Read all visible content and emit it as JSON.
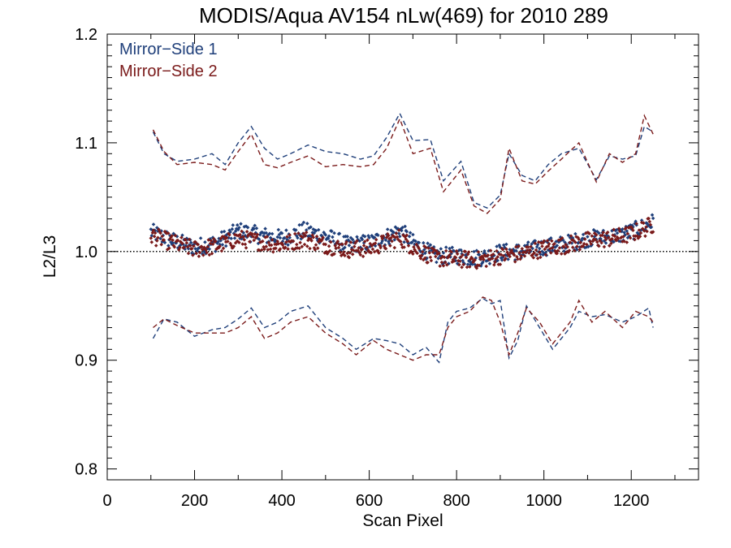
{
  "chart_data": {
    "type": "scatter",
    "title": "MODIS/Aqua AV154 nLw(469) for 2010 289",
    "xlabel": "Scan Pixel",
    "ylabel": "L2/L3",
    "xlim": [
      0,
      1354
    ],
    "ylim": [
      0.79,
      1.2
    ],
    "x_ticks": [
      0,
      200,
      400,
      600,
      800,
      1000,
      1200
    ],
    "x_tick_labels": [
      "0",
      "200",
      "400",
      "600",
      "800",
      "1000",
      "1200"
    ],
    "y_ticks": [
      0.8,
      0.9,
      1.0,
      1.1,
      1.2
    ],
    "y_tick_labels": [
      "0.8",
      "0.9",
      "1.0",
      "1.1",
      "1.2"
    ],
    "reference_line": {
      "y": 1.0,
      "style": "dotted",
      "color": "#000000"
    },
    "legend_position": "top-left",
    "series": [
      {
        "name": "Mirror−Side 1",
        "color": "#1f3f7a",
        "mean_profile": {
          "x": [
            100,
            150,
            200,
            250,
            300,
            350,
            400,
            450,
            500,
            550,
            600,
            650,
            670,
            700,
            750,
            800,
            850,
            900,
            950,
            1000,
            1050,
            1100,
            1150,
            1200,
            1250
          ],
          "y": [
            1.018,
            1.01,
            1.004,
            1.008,
            1.019,
            1.015,
            1.012,
            1.019,
            1.014,
            1.006,
            1.008,
            1.015,
            1.02,
            1.008,
            0.996,
            0.996,
            0.994,
            0.999,
            1.0,
            1.004,
            1.007,
            1.012,
            1.013,
            1.018,
            1.027
          ]
        },
        "upper_envelope": {
          "x": [
            105,
            130,
            160,
            200,
            240,
            270,
            300,
            330,
            360,
            390,
            420,
            460,
            500,
            540,
            580,
            610,
            640,
            670,
            700,
            740,
            770,
            810,
            840,
            870,
            900,
            920,
            950,
            980,
            1010,
            1040,
            1080,
            1120,
            1150,
            1180,
            1210,
            1230,
            1250
          ],
          "y": [
            1.11,
            1.09,
            1.083,
            1.085,
            1.09,
            1.08,
            1.1,
            1.115,
            1.095,
            1.085,
            1.09,
            1.098,
            1.092,
            1.09,
            1.085,
            1.088,
            1.105,
            1.127,
            1.102,
            1.103,
            1.065,
            1.083,
            1.045,
            1.04,
            1.052,
            1.09,
            1.07,
            1.065,
            1.08,
            1.09,
            1.095,
            1.066,
            1.088,
            1.085,
            1.088,
            1.115,
            1.11
          ]
        },
        "lower_envelope": {
          "x": [
            105,
            130,
            160,
            200,
            240,
            270,
            300,
            330,
            360,
            390,
            420,
            460,
            500,
            540,
            570,
            610,
            640,
            670,
            700,
            730,
            760,
            780,
            800,
            830,
            860,
            880,
            900,
            920,
            940,
            960,
            990,
            1020,
            1060,
            1080,
            1110,
            1140,
            1180,
            1210,
            1240,
            1250
          ],
          "y": [
            0.92,
            0.938,
            0.935,
            0.922,
            0.928,
            0.93,
            0.938,
            0.948,
            0.93,
            0.935,
            0.945,
            0.95,
            0.93,
            0.92,
            0.91,
            0.92,
            0.918,
            0.915,
            0.905,
            0.912,
            0.898,
            0.935,
            0.945,
            0.948,
            0.957,
            0.952,
            0.955,
            0.902,
            0.918,
            0.95,
            0.93,
            0.91,
            0.93,
            0.945,
            0.94,
            0.942,
            0.935,
            0.94,
            0.948,
            0.93
          ]
        }
      },
      {
        "name": "Mirror−Side 2",
        "color": "#7a1a1a",
        "mean_profile": {
          "x": [
            100,
            150,
            200,
            250,
            300,
            350,
            400,
            450,
            500,
            550,
            600,
            650,
            670,
            700,
            750,
            800,
            850,
            900,
            950,
            1000,
            1050,
            1100,
            1150,
            1200,
            1250
          ],
          "y": [
            1.015,
            1.008,
            1.002,
            1.005,
            1.012,
            1.009,
            1.006,
            1.012,
            1.006,
            1.002,
            1.003,
            1.01,
            1.013,
            1.004,
            0.994,
            0.993,
            0.992,
            0.996,
            0.998,
            1.003,
            1.006,
            1.01,
            1.012,
            1.016,
            1.025
          ]
        },
        "upper_envelope": {
          "x": [
            105,
            130,
            160,
            200,
            240,
            270,
            300,
            330,
            360,
            390,
            420,
            460,
            500,
            540,
            580,
            610,
            640,
            670,
            700,
            740,
            770,
            810,
            840,
            870,
            900,
            920,
            950,
            980,
            1010,
            1040,
            1080,
            1120,
            1150,
            1180,
            1210,
            1230,
            1250
          ],
          "y": [
            1.112,
            1.092,
            1.08,
            1.082,
            1.08,
            1.075,
            1.092,
            1.108,
            1.08,
            1.077,
            1.082,
            1.088,
            1.078,
            1.08,
            1.078,
            1.08,
            1.095,
            1.122,
            1.09,
            1.095,
            1.055,
            1.075,
            1.042,
            1.035,
            1.048,
            1.095,
            1.065,
            1.062,
            1.074,
            1.085,
            1.1,
            1.064,
            1.09,
            1.082,
            1.09,
            1.125,
            1.108
          ]
        },
        "lower_envelope": {
          "x": [
            105,
            130,
            160,
            200,
            240,
            270,
            300,
            330,
            360,
            390,
            420,
            460,
            500,
            540,
            570,
            610,
            640,
            670,
            700,
            730,
            760,
            780,
            800,
            830,
            860,
            880,
            900,
            920,
            940,
            960,
            990,
            1020,
            1060,
            1080,
            1110,
            1140,
            1180,
            1210,
            1240,
            1250
          ],
          "y": [
            0.93,
            0.938,
            0.932,
            0.925,
            0.925,
            0.925,
            0.93,
            0.94,
            0.92,
            0.925,
            0.935,
            0.94,
            0.925,
            0.915,
            0.905,
            0.918,
            0.91,
            0.905,
            0.9,
            0.905,
            0.905,
            0.93,
            0.94,
            0.945,
            0.958,
            0.955,
            0.935,
            0.905,
            0.925,
            0.948,
            0.935,
            0.915,
            0.935,
            0.955,
            0.935,
            0.945,
            0.93,
            0.945,
            0.94,
            0.935
          ]
        }
      }
    ]
  }
}
